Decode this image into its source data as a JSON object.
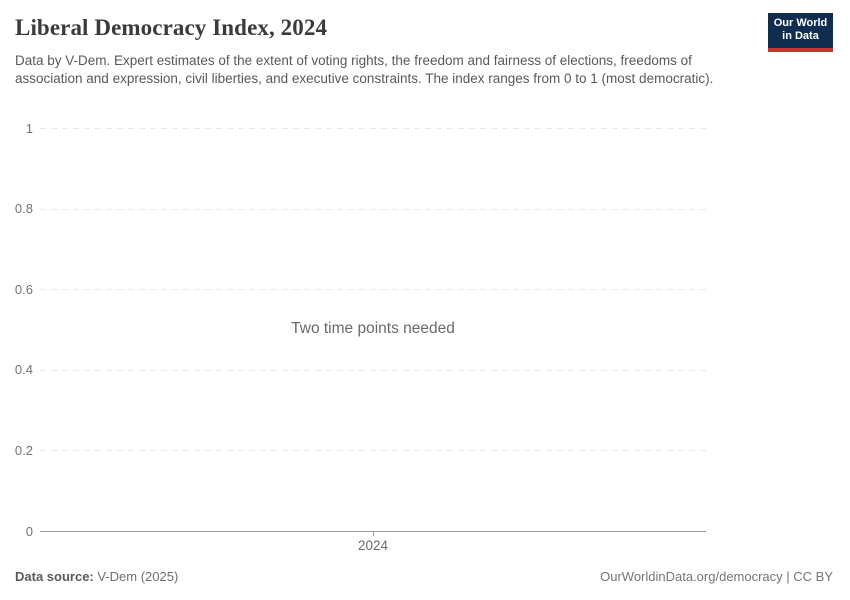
{
  "header": {
    "title": "Liberal Democracy Index, 2024",
    "subtitle": "Data by V-Dem. Expert estimates of the extent of voting rights, the freedom and fairness of elections, freedoms of association and expression, civil liberties, and executive constraints. The index ranges from 0 to 1 (most democratic)."
  },
  "logo": {
    "line1": "Our World",
    "line2": "in Data",
    "bg_color": "#0f2e4f",
    "underline_color": "#c9342c"
  },
  "chart_data": {
    "type": "line",
    "title": "Liberal Democracy Index, 2024",
    "series": [],
    "empty_state_message": "Two time points needed",
    "x_tick_labels": [
      "2024"
    ],
    "y_ticks": [
      0,
      0.2,
      0.4,
      0.6,
      0.8,
      1
    ],
    "y_tick_labels": [
      "0",
      "0.2",
      "0.4",
      "0.6",
      "0.8",
      "1"
    ],
    "ylim": [
      0,
      1
    ],
    "grid": "horizontal-dashed",
    "legend_position": "none"
  },
  "colors": {
    "title_text": "#3b3b3b",
    "subtitle_text": "#595959",
    "gridline": "#e8e8e8",
    "axis_line": "#9a9a9a",
    "tick_label": "#737373",
    "message_text": "#6a6a6a"
  },
  "footer": {
    "source_label": "Data source:",
    "source_value": "V-Dem (2025)",
    "link_text": "OurWorldinData.org/democracy | CC BY"
  }
}
